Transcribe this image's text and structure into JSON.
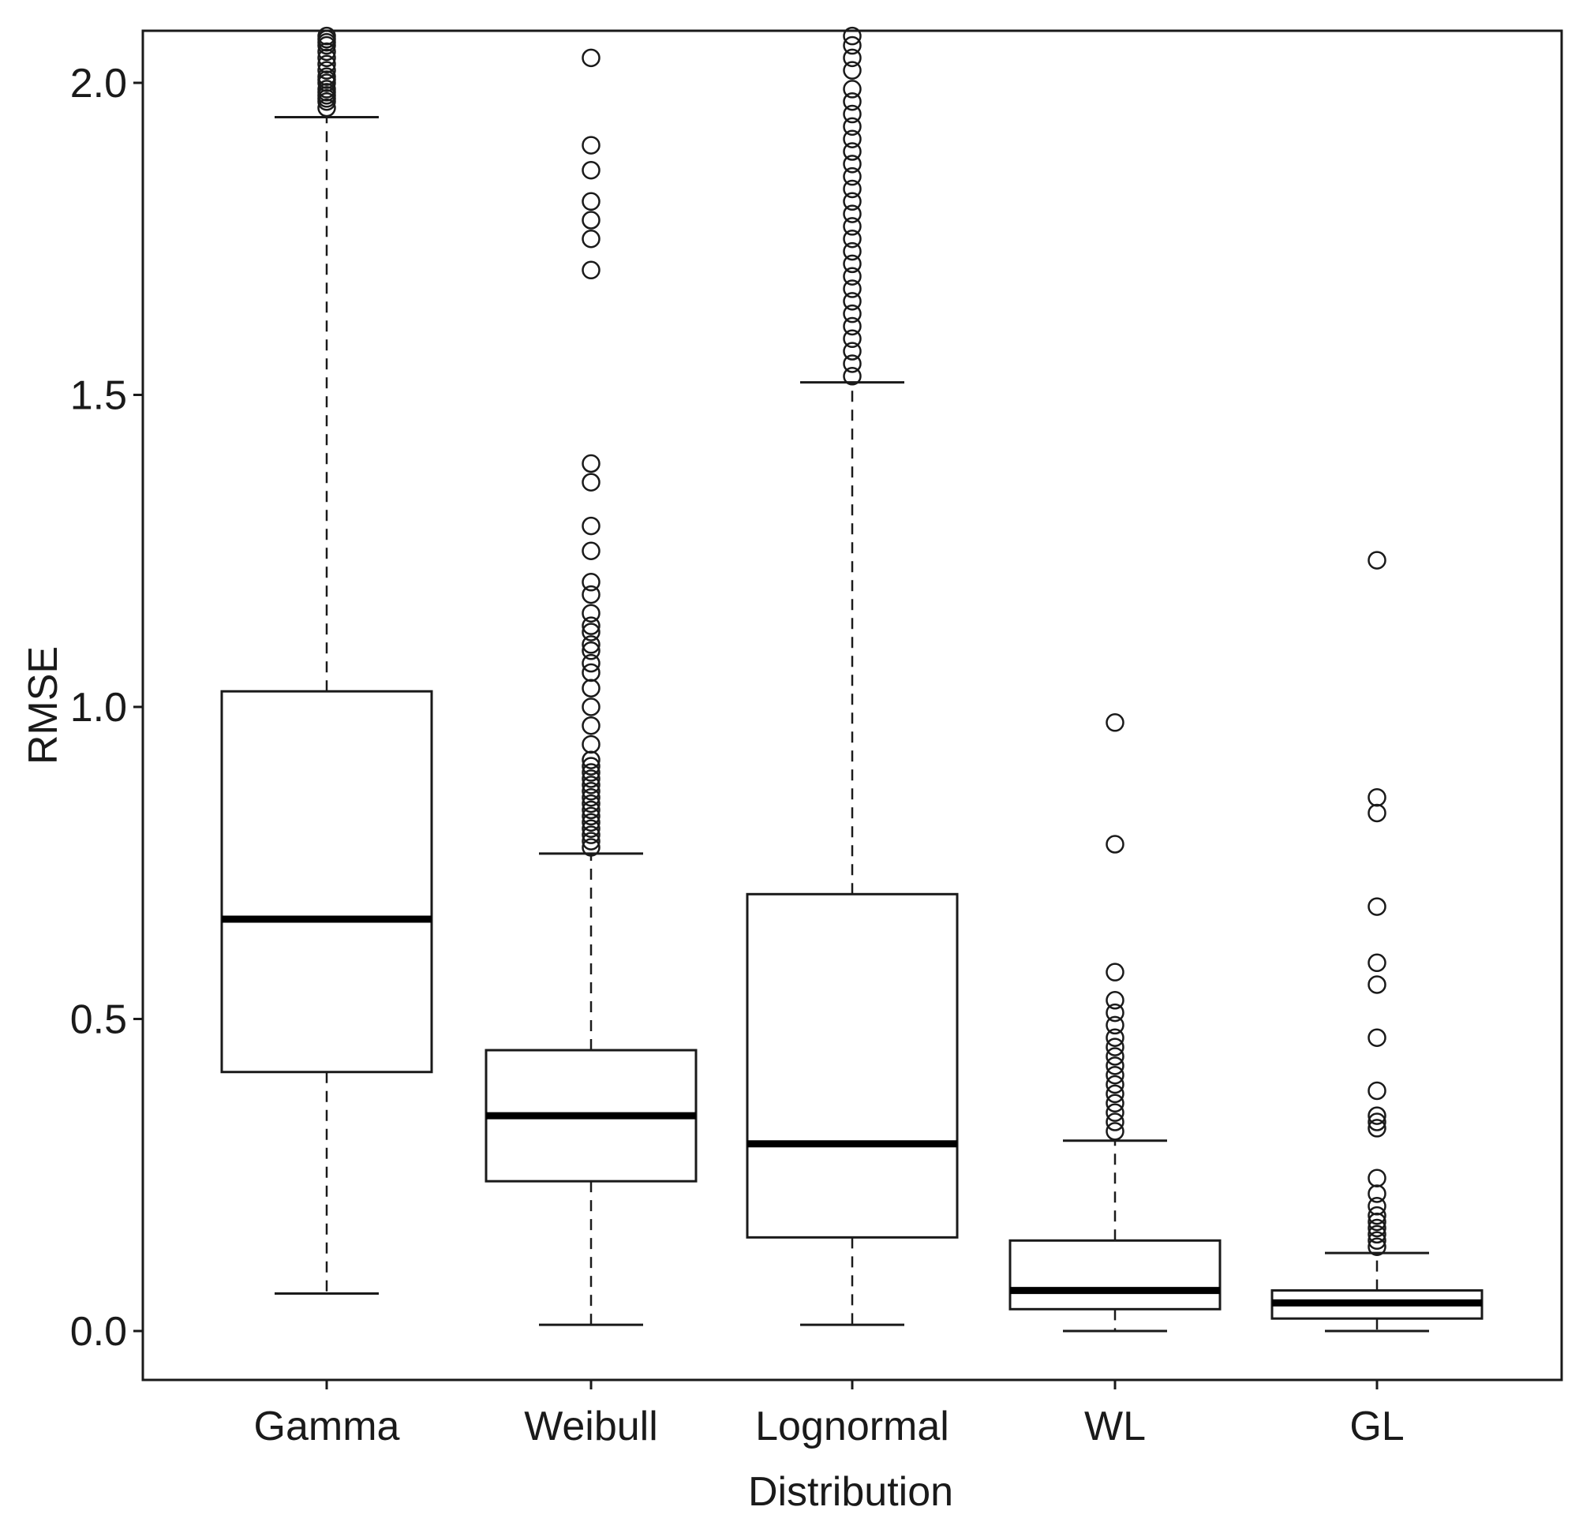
{
  "chart_data": {
    "type": "boxplot",
    "xlabel": "Distribution",
    "ylabel": "RMSE",
    "ylim": [
      -0.08,
      2.08
    ],
    "yticks": [
      0.0,
      0.5,
      1.0,
      1.5,
      2.0
    ],
    "ytick_labels": [
      "0.0",
      "0.5",
      "1.0",
      "1.5",
      "2.0"
    ],
    "categories": [
      "Gamma",
      "Weibull",
      "Lognormal",
      "WL",
      "GL"
    ],
    "boxes": [
      {
        "name": "Gamma",
        "whisker_low": 0.06,
        "q1": 0.415,
        "median": 0.66,
        "q3": 1.025,
        "whisker_high": 1.945,
        "outliers": [
          1.96,
          1.97,
          1.975,
          1.98,
          1.985,
          1.99,
          2.0,
          2.005,
          2.01,
          2.02,
          2.03,
          2.04,
          2.05,
          2.06,
          2.065,
          2.07,
          2.075
        ]
      },
      {
        "name": "Weibull",
        "whisker_low": 0.01,
        "q1": 0.24,
        "median": 0.345,
        "q3": 0.45,
        "whisker_high": 0.765,
        "outliers": [
          0.775,
          0.785,
          0.795,
          0.805,
          0.815,
          0.825,
          0.835,
          0.845,
          0.855,
          0.865,
          0.875,
          0.885,
          0.895,
          0.905,
          0.915,
          0.94,
          0.97,
          1.0,
          1.03,
          1.055,
          1.07,
          1.09,
          1.1,
          1.12,
          1.13,
          1.15,
          1.18,
          1.2,
          1.25,
          1.29,
          1.36,
          1.39,
          1.7,
          1.75,
          1.78,
          1.81,
          1.86,
          1.9,
          2.04
        ]
      },
      {
        "name": "Lognormal",
        "whisker_low": 0.01,
        "q1": 0.15,
        "median": 0.3,
        "q3": 0.7,
        "whisker_high": 1.52,
        "outliers": [
          1.53,
          1.55,
          1.57,
          1.59,
          1.61,
          1.63,
          1.65,
          1.67,
          1.69,
          1.71,
          1.73,
          1.75,
          1.77,
          1.79,
          1.81,
          1.83,
          1.85,
          1.87,
          1.89,
          1.91,
          1.93,
          1.95,
          1.97,
          1.99,
          2.02,
          2.04,
          2.06,
          2.075
        ]
      },
      {
        "name": "WL",
        "whisker_low": 0.0,
        "q1": 0.035,
        "median": 0.065,
        "q3": 0.145,
        "whisker_high": 0.305,
        "outliers": [
          0.32,
          0.335,
          0.35,
          0.365,
          0.38,
          0.395,
          0.41,
          0.425,
          0.44,
          0.455,
          0.47,
          0.49,
          0.51,
          0.53,
          0.575,
          0.78,
          0.975
        ]
      },
      {
        "name": "GL",
        "whisker_low": 0.0,
        "q1": 0.02,
        "median": 0.045,
        "q3": 0.065,
        "whisker_high": 0.125,
        "outliers": [
          0.135,
          0.145,
          0.155,
          0.165,
          0.175,
          0.185,
          0.2,
          0.22,
          0.245,
          0.325,
          0.335,
          0.345,
          0.385,
          0.47,
          0.555,
          0.59,
          0.68,
          0.83,
          0.855,
          1.235
        ]
      }
    ]
  }
}
